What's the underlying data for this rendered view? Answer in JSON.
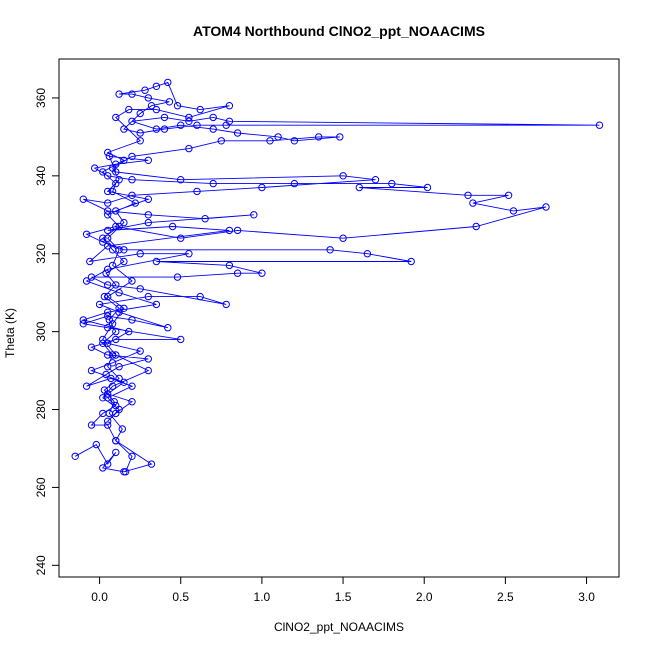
{
  "chart_data": {
    "type": "line",
    "title": "ATOM4 Northbound ClNO2_ppt_NOAACIMS",
    "xlabel": "ClNO2_ppt_NOAACIMS",
    "ylabel": "Theta (K)",
    "xlim": [
      -0.25,
      3.2
    ],
    "ylim": [
      237,
      370
    ],
    "x_ticks": [
      0.0,
      0.5,
      1.0,
      1.5,
      2.0,
      2.5,
      3.0
    ],
    "x_tick_labels": [
      "0.0",
      "0.5",
      "1.0",
      "1.5",
      "2.0",
      "2.5",
      "3.0"
    ],
    "y_ticks": [
      240,
      260,
      280,
      300,
      320,
      340,
      360
    ],
    "y_tick_labels": [
      "240",
      "260",
      "280",
      "300",
      "320",
      "340",
      "360"
    ],
    "marker": "open-circle",
    "line_style": "solid",
    "grid": false,
    "legend": "none",
    "colors": {
      "series": "#0000ff",
      "axis": "#000000",
      "background": "#ffffff"
    },
    "series": [
      {
        "points": [
          [
            -0.15,
            268
          ],
          [
            -0.02,
            271
          ],
          [
            0.05,
            266
          ],
          [
            0.1,
            269
          ],
          [
            0.02,
            265
          ],
          [
            0.15,
            264
          ],
          [
            0.32,
            266
          ],
          [
            0.1,
            272
          ],
          [
            0.05,
            276
          ],
          [
            -0.05,
            276
          ],
          [
            0.02,
            279
          ],
          [
            0.1,
            281
          ],
          [
            0.05,
            283
          ],
          [
            0.2,
            286
          ],
          [
            0.07,
            288
          ],
          [
            -0.08,
            286
          ],
          [
            0.04,
            289
          ],
          [
            0.12,
            291
          ],
          [
            0.3,
            293
          ],
          [
            0.05,
            294
          ],
          [
            -0.05,
            296
          ],
          [
            0.1,
            298
          ],
          [
            0.5,
            298
          ],
          [
            0.05,
            301
          ],
          [
            -0.1,
            302
          ],
          [
            0.05,
            304
          ],
          [
            0.2,
            303
          ],
          [
            0.42,
            301
          ],
          [
            0.12,
            305
          ],
          [
            0.0,
            307
          ],
          [
            0.3,
            309
          ],
          [
            0.62,
            309
          ],
          [
            0.78,
            307
          ],
          [
            0.25,
            311
          ],
          [
            0.05,
            312
          ],
          [
            -0.05,
            314
          ],
          [
            0.48,
            314
          ],
          [
            0.85,
            315
          ],
          [
            1.0,
            315
          ],
          [
            0.8,
            317
          ],
          [
            0.35,
            318
          ],
          [
            1.92,
            318
          ],
          [
            1.65,
            320
          ],
          [
            1.42,
            321
          ],
          [
            0.15,
            321
          ],
          [
            0.02,
            323
          ],
          [
            -0.08,
            325
          ],
          [
            0.1,
            327
          ],
          [
            0.5,
            324
          ],
          [
            0.85,
            326
          ],
          [
            1.5,
            324
          ],
          [
            2.32,
            327
          ],
          [
            2.75,
            332
          ],
          [
            2.55,
            331
          ],
          [
            2.3,
            333
          ],
          [
            2.52,
            335
          ],
          [
            2.27,
            335
          ],
          [
            1.6,
            337
          ],
          [
            2.02,
            337
          ],
          [
            1.8,
            338
          ],
          [
            1.2,
            338
          ],
          [
            0.7,
            338
          ],
          [
            0.2,
            339
          ],
          [
            0.05,
            340
          ],
          [
            -0.03,
            342
          ],
          [
            0.1,
            343
          ],
          [
            0.3,
            344
          ],
          [
            0.06,
            345
          ],
          [
            0.1,
            341
          ],
          [
            0.5,
            339
          ],
          [
            1.5,
            340
          ],
          [
            1.7,
            339
          ],
          [
            1.0,
            337
          ],
          [
            0.6,
            336
          ],
          [
            0.2,
            335
          ],
          [
            0.05,
            333
          ],
          [
            -0.1,
            334
          ],
          [
            0.05,
            331
          ],
          [
            0.3,
            330
          ],
          [
            0.65,
            329
          ],
          [
            0.95,
            330
          ],
          [
            0.3,
            328
          ],
          [
            0.05,
            326
          ],
          [
            0.45,
            327
          ],
          [
            0.8,
            326
          ],
          [
            0.05,
            322
          ],
          [
            -0.06,
            318
          ],
          [
            0.25,
            320
          ],
          [
            0.55,
            320
          ],
          [
            0.05,
            316
          ],
          [
            -0.08,
            313
          ],
          [
            0.12,
            310
          ],
          [
            0.35,
            307
          ],
          [
            0.05,
            305
          ],
          [
            -0.1,
            303
          ],
          [
            0.18,
            300
          ],
          [
            0.05,
            297
          ],
          [
            0.25,
            295
          ],
          [
            0.08,
            292
          ],
          [
            -0.05,
            290
          ],
          [
            0.15,
            287
          ],
          [
            0.05,
            284
          ],
          [
            0.2,
            282
          ],
          [
            0.1,
            279
          ],
          [
            0.05,
            277
          ],
          [
            0.12,
            280
          ],
          [
            0.02,
            283
          ],
          [
            0.08,
            286
          ],
          [
            0.3,
            290
          ],
          [
            0.1,
            294
          ],
          [
            0.02,
            298
          ],
          [
            0.08,
            302
          ],
          [
            0.15,
            306
          ],
          [
            0.05,
            309
          ],
          [
            0.2,
            313
          ],
          [
            0.08,
            317
          ],
          [
            0.12,
            321
          ],
          [
            0.05,
            324
          ],
          [
            0.15,
            328
          ],
          [
            0.1,
            331
          ],
          [
            0.3,
            334
          ],
          [
            0.05,
            336
          ],
          [
            0.12,
            339
          ],
          [
            0.08,
            342
          ],
          [
            0.2,
            345
          ],
          [
            0.55,
            347
          ],
          [
            0.75,
            349
          ],
          [
            1.05,
            349
          ],
          [
            1.35,
            350
          ],
          [
            1.48,
            350
          ],
          [
            1.2,
            349
          ],
          [
            1.1,
            350
          ],
          [
            0.85,
            351
          ],
          [
            0.7,
            352
          ],
          [
            0.5,
            353
          ],
          [
            0.35,
            352
          ],
          [
            0.2,
            354
          ],
          [
            0.4,
            355
          ],
          [
            0.55,
            354
          ],
          [
            0.7,
            355
          ],
          [
            0.8,
            354
          ],
          [
            3.08,
            353
          ],
          [
            0.78,
            353
          ],
          [
            0.6,
            353
          ],
          [
            0.4,
            352
          ],
          [
            0.25,
            351
          ],
          [
            0.15,
            352
          ],
          [
            0.25,
            356
          ],
          [
            0.32,
            358
          ],
          [
            0.43,
            359
          ],
          [
            0.3,
            360
          ],
          [
            0.2,
            361
          ],
          [
            0.12,
            361
          ],
          [
            0.28,
            362
          ],
          [
            0.35,
            363
          ],
          [
            0.42,
            364
          ],
          [
            0.48,
            358
          ],
          [
            0.62,
            357
          ],
          [
            0.8,
            358
          ],
          [
            0.55,
            355
          ],
          [
            0.35,
            357
          ],
          [
            0.18,
            357
          ],
          [
            0.1,
            355
          ],
          [
            0.25,
            349
          ],
          [
            0.05,
            346
          ],
          [
            0.15,
            344
          ],
          [
            0.02,
            341
          ],
          [
            0.1,
            338
          ],
          [
            0.08,
            336
          ],
          [
            0.22,
            333
          ],
          [
            0.05,
            330
          ],
          [
            0.12,
            327
          ],
          [
            0.02,
            324
          ],
          [
            0.08,
            321
          ],
          [
            0.15,
            318
          ],
          [
            0.04,
            315
          ],
          [
            0.1,
            312
          ],
          [
            0.03,
            309
          ],
          [
            0.12,
            306
          ],
          [
            0.06,
            303
          ],
          [
            0.1,
            300
          ],
          [
            0.02,
            297
          ],
          [
            0.08,
            294
          ],
          [
            0.05,
            291
          ],
          [
            0.12,
            288
          ],
          [
            0.03,
            285
          ],
          [
            0.09,
            282
          ],
          [
            0.06,
            279
          ],
          [
            0.14,
            275
          ],
          [
            0.1,
            272
          ],
          [
            0.2,
            268
          ],
          [
            0.16,
            264
          ]
        ]
      }
    ]
  }
}
